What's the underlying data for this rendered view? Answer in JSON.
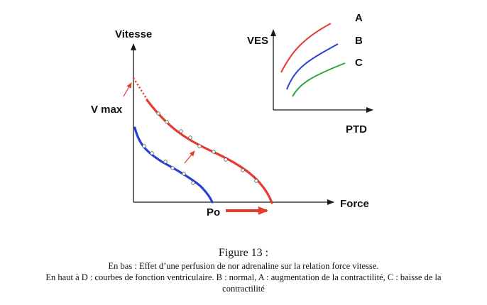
{
  "main_chart": {
    "ylabel": "Vitesse",
    "xlabel": "Force",
    "vmax_label": "V max",
    "po_label": "Po"
  },
  "inset_chart": {
    "ylabel": "VES",
    "xlabel": "PTD",
    "curves": [
      {
        "name": "A",
        "color": "#e63b2e"
      },
      {
        "name": "B",
        "color": "#2a3fd6"
      },
      {
        "name": "C",
        "color": "#2aa83a"
      }
    ]
  },
  "colors": {
    "red": "#e63b2e",
    "blue": "#2a3fd6",
    "green": "#2aa83a",
    "axis": "#1a1a1a"
  },
  "caption": {
    "title": "Figure 13 :",
    "line1": "En bas : Effet d’une perfusion de nor adrenaline sur la relation force vitesse.",
    "line2": "En haut à D : courbes de fonction ventriculaire. B : normal, A : augmentation de la contractilité, C : baisse de la",
    "line3": "contractilité"
  }
}
